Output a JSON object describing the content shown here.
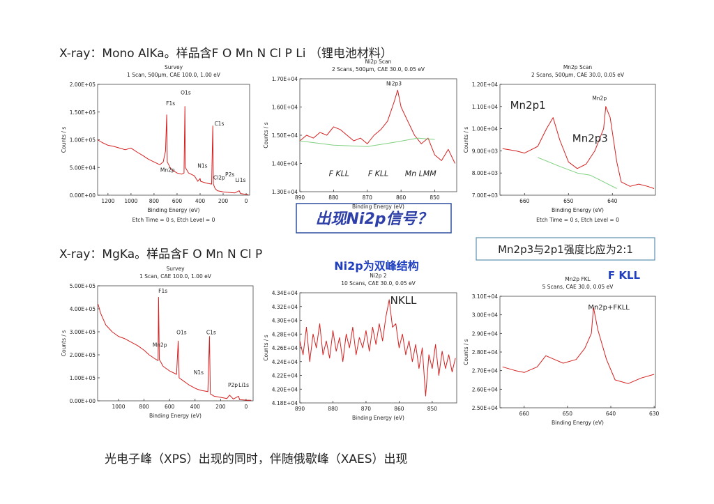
{
  "slide": {
    "heading_1": "X-ray：Mono AlKa。样品含F O Mn N Cl P Li （锂电池材料）",
    "heading_2": "X-ray：MgKa。样品含F O Mn N Cl P",
    "callout_ni": "出现Ni2p信号？",
    "callout_ratio": "Mn2p3与2p1强度比应为2:1",
    "note_ni": "Ni2p为双峰结构",
    "note_fkll": "F KLL",
    "conclusion": "光电子峰（XPS）出现的同时，伴随俄歇峰（XAES）出现"
  },
  "chart_data": [
    {
      "type": "line",
      "title": "Survey",
      "subtitle": "1 Scan, 500µm, CAE 100.0, 1.00 eV",
      "x_label": "Binding Energy (eV)",
      "y_label": "Counts / s",
      "footer": "Etch Time = 0 s, Etch Level = 0",
      "xlim": [
        1290,
        -30
      ],
      "xticks": [
        1200,
        1000,
        800,
        600,
        400,
        200,
        0
      ],
      "ylim": [
        0,
        200000
      ],
      "yticks": [
        {
          "value": 0,
          "label": "0.00E+00"
        },
        {
          "value": 50000,
          "label": "5.00E+04"
        },
        {
          "value": 100000,
          "label": "1.00E+05"
        },
        {
          "value": 150000,
          "label": "1.50E+05"
        },
        {
          "value": 200000,
          "label": "2.00E+05"
        }
      ],
      "series": [
        {
          "color": "#d42020",
          "x": [
            1290,
            1250,
            1200,
            1150,
            1100,
            1050,
            1000,
            950,
            900,
            850,
            800,
            750,
            720,
            700,
            690,
            685,
            660,
            640,
            600,
            560,
            540,
            532,
            528,
            500,
            450,
            420,
            400,
            395,
            350,
            300,
            290,
            285,
            270,
            250,
            200,
            150,
            100,
            60,
            50,
            20,
            0,
            -20
          ],
          "values": [
            100000,
            95000,
            90000,
            88000,
            85000,
            82000,
            85000,
            78000,
            72000,
            65000,
            60000,
            55000,
            60000,
            80000,
            145000,
            60000,
            50000,
            45000,
            40000,
            38000,
            40000,
            160000,
            50000,
            40000,
            35000,
            25000,
            30000,
            25000,
            22000,
            20000,
            125000,
            20000,
            12000,
            8000,
            6000,
            5000,
            4000,
            8000,
            3000,
            2000,
            1500,
            1000
          ]
        }
      ],
      "annotations": [
        "F1s",
        "O1s",
        "C1s",
        "Mn2p",
        "N1s",
        "Cl2p",
        "P2s",
        "Li1s"
      ]
    },
    {
      "type": "line",
      "title": "Ni2p Scan",
      "subtitle": "2 Scans, 500µm, CAE 30.0, 0.05 eV",
      "x_label": "Binding Energy (eV)",
      "y_label": "Counts / s",
      "xlim": [
        890,
        843.5
      ],
      "xticks": [
        890,
        880,
        870,
        860,
        850
      ],
      "ylim": [
        13000,
        17000
      ],
      "yticks": [
        {
          "value": 13000,
          "label": "1.30E+04"
        },
        {
          "value": 14000,
          "label": "1.40E+04"
        },
        {
          "value": 15000,
          "label": "1.50E+04"
        },
        {
          "value": 16000,
          "label": "1.60E+04"
        },
        {
          "value": 17000,
          "label": "1.70E+04"
        }
      ],
      "series": [
        {
          "color": "#d42020",
          "x": [
            890,
            888,
            886,
            884,
            882,
            880,
            878,
            876,
            874,
            872,
            870,
            868,
            866,
            864,
            862,
            861,
            860,
            858,
            856,
            854,
            852,
            850,
            848,
            846,
            844
          ],
          "values": [
            14800,
            15000,
            14900,
            15100,
            15000,
            15300,
            15200,
            15000,
            14800,
            14900,
            14700,
            15000,
            15200,
            15500,
            16200,
            16600,
            16000,
            15500,
            15000,
            14700,
            14900,
            14300,
            14100,
            14500,
            14000
          ]
        },
        {
          "color": "#80d080",
          "x": [
            890,
            880,
            870,
            862,
            855,
            850
          ],
          "values": [
            14800,
            14650,
            14600,
            14750,
            14900,
            14850
          ]
        }
      ],
      "annotations": [
        "F KLL",
        "F KLL",
        "Mn LMM",
        "Ni2p3"
      ]
    },
    {
      "type": "line",
      "title": "Mn2p Scan",
      "subtitle": "2 Scans, 500µm, CAE 30.0, 0.05 eV",
      "x_label": "Binding Energy (eV)",
      "y_label": "Counts / s",
      "footer": "Etch Time = 0 s, Etch Level = 0",
      "xlim": [
        665.6,
        630.2
      ],
      "xticks": [
        660,
        650,
        640
      ],
      "ylim": [
        7000,
        12000
      ],
      "yticks": [
        {
          "value": 7000,
          "label": "7.00E+03"
        },
        {
          "value": 8000,
          "label": "8.00E+03"
        },
        {
          "value": 9000,
          "label": "9.00E+03"
        },
        {
          "value": 10000,
          "label": "1.00E+04"
        },
        {
          "value": 11000,
          "label": "1.10E+04"
        },
        {
          "value": 12000,
          "label": "1.20E+04"
        }
      ],
      "series": [
        {
          "color": "#d42020",
          "x": [
            665,
            662,
            660,
            657,
            655,
            653.5,
            652,
            650,
            648,
            646,
            644,
            642,
            641.5,
            640.5,
            639,
            638,
            636,
            634,
            632,
            630.5
          ],
          "values": [
            9100,
            9000,
            8900,
            9200,
            10000,
            10500,
            9500,
            8500,
            8200,
            8400,
            9000,
            10000,
            11000,
            10500,
            8500,
            7600,
            7400,
            7500,
            7400,
            7300
          ]
        },
        {
          "color": "#80d080",
          "x": [
            657,
            652,
            648,
            645,
            642,
            639
          ],
          "values": [
            8700,
            8300,
            8000,
            7900,
            7600,
            7300
          ]
        }
      ],
      "annotations": [
        "Mn2p1",
        "Mn2p3",
        "Mn2p"
      ]
    },
    {
      "type": "line",
      "title": "Survey",
      "subtitle": "1 Scan, CAE 100.0, 1.00 eV",
      "x_label": "Binding Energy (eV)",
      "y_label": "Counts / s",
      "xlim": [
        1164,
        -55
      ],
      "xticks": [
        1000,
        800,
        600,
        400,
        200,
        0
      ],
      "ylim": [
        0,
        500000
      ],
      "yticks": [
        {
          "value": 0,
          "label": "0.00E+00"
        },
        {
          "value": 100000,
          "label": "1.00E+05"
        },
        {
          "value": 200000,
          "label": "2.00E+05"
        },
        {
          "value": 300000,
          "label": "3.00E+05"
        },
        {
          "value": 400000,
          "label": "4.00E+05"
        },
        {
          "value": 500000,
          "label": "5.00E+05"
        }
      ],
      "series": [
        {
          "color": "#d42020",
          "x": [
            1160,
            1140,
            1100,
            1050,
            1000,
            950,
            900,
            850,
            800,
            760,
            720,
            690,
            686,
            680,
            650,
            600,
            545,
            532,
            525,
            500,
            450,
            400,
            380,
            350,
            300,
            287,
            280,
            250,
            200,
            150,
            130,
            100,
            60,
            50,
            0,
            -40
          ],
          "values": [
            420000,
            380000,
            330000,
            300000,
            280000,
            270000,
            255000,
            240000,
            220000,
            200000,
            185000,
            175000,
            450000,
            180000,
            150000,
            130000,
            115000,
            260000,
            100000,
            90000,
            70000,
            55000,
            50000,
            45000,
            40000,
            280000,
            30000,
            20000,
            15000,
            10000,
            25000,
            8000,
            20000,
            5000,
            3000,
            2000
          ]
        }
      ],
      "annotations": [
        "F1s",
        "O1s",
        "C1s",
        "Mn2p",
        "N1s",
        "P2p",
        "Li1s"
      ]
    },
    {
      "type": "line",
      "title": "Ni2p 2",
      "subtitle": "10 Scans, CAE 30.0, 0.05 eV",
      "x_label": "Binding Energy (eV)",
      "y_label": "Counts / s",
      "xlim": [
        890,
        842.6
      ],
      "xticks": [
        890,
        880,
        870,
        860,
        850
      ],
      "ylim": [
        41800,
        43400
      ],
      "yticks": [
        {
          "value": 41800,
          "label": "4.18E+04"
        },
        {
          "value": 42000,
          "label": "4.20E+04"
        },
        {
          "value": 42200,
          "label": "4.22E+04"
        },
        {
          "value": 42400,
          "label": "4.24E+04"
        },
        {
          "value": 42600,
          "label": "4.26E+04"
        },
        {
          "value": 42800,
          "label": "4.28E+04"
        },
        {
          "value": 43000,
          "label": "4.30E+04"
        },
        {
          "value": 43200,
          "label": "4.32E+04"
        },
        {
          "value": 43400,
          "label": "4.34E+04"
        }
      ],
      "series": [
        {
          "color": "#d42020",
          "x": [
            890,
            889,
            888,
            887,
            886,
            885,
            884,
            883,
            882,
            881,
            880,
            879,
            878,
            877,
            876,
            875,
            874,
            873,
            872,
            871,
            870,
            869,
            868,
            867,
            866,
            865,
            864,
            863,
            862,
            861,
            860,
            859,
            858,
            857,
            856,
            855,
            854,
            853,
            852,
            851,
            850,
            849,
            848,
            847,
            846,
            845,
            844,
            843
          ],
          "values": [
            42700,
            42500,
            42900,
            42400,
            42800,
            42600,
            42950,
            42500,
            42700,
            42450,
            42850,
            42550,
            42750,
            42400,
            42800,
            42600,
            42900,
            42500,
            42750,
            42600,
            42850,
            42550,
            42900,
            42650,
            42950,
            42700,
            43050,
            43300,
            42900,
            42950,
            42600,
            42800,
            42500,
            42700,
            42400,
            42650,
            42300,
            42600,
            41900,
            42500,
            42300,
            42650,
            42200,
            42550,
            42300,
            42500,
            42250,
            42450
          ]
        }
      ],
      "annotations": [
        "NKLL"
      ]
    },
    {
      "type": "line",
      "title": "Mn2p FKL",
      "subtitle": "5 Scans, CAE 30.0, 0.05 eV",
      "x_label": "Binding Energy (eV)",
      "y_label": "Counts / s",
      "xlim": [
        665.6,
        629.7
      ],
      "xticks": [
        660,
        650,
        640,
        630
      ],
      "ylim": [
        25000,
        31000
      ],
      "yticks": [
        {
          "value": 25000,
          "label": "2.50E+04"
        },
        {
          "value": 26000,
          "label": "2.60E+04"
        },
        {
          "value": 27000,
          "label": "2.70E+04"
        },
        {
          "value": 28000,
          "label": "2.80E+04"
        },
        {
          "value": 29000,
          "label": "2.90E+04"
        },
        {
          "value": 30000,
          "label": "3.00E+04"
        },
        {
          "value": 31000,
          "label": "3.10E+04"
        }
      ],
      "series": [
        {
          "color": "#d42020",
          "x": [
            665,
            662,
            660,
            657,
            655,
            653,
            651,
            648,
            646,
            644.5,
            644,
            643,
            641,
            639,
            636,
            633,
            630
          ],
          "values": [
            27200,
            27000,
            26900,
            27200,
            27800,
            27600,
            27400,
            27600,
            28200,
            29000,
            30400,
            29200,
            27600,
            26500,
            26300,
            26600,
            26800
          ]
        }
      ],
      "annotations": [
        "Mn2p+FKLL"
      ]
    }
  ]
}
